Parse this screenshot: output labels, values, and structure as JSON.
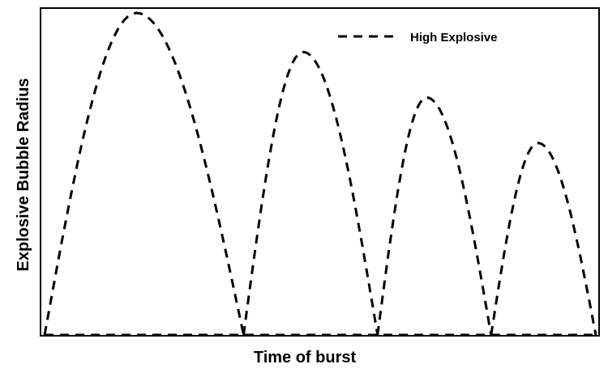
{
  "chart_data": {
    "type": "line",
    "title": "",
    "xlabel": "Time of burst",
    "ylabel": "Explosive Bubble Radius",
    "x_ticks_shown": false,
    "y_ticks_shown": false,
    "grid": false,
    "legend_position": "top-right",
    "xlim": [
      0,
      1
    ],
    "ylim": [
      0,
      1
    ],
    "series": [
      {
        "name": "High Explosive",
        "line_style": "dashed",
        "color": "#000000",
        "bubbles": [
          {
            "start": 0.0,
            "end": 0.361,
            "peak_x": 0.167,
            "peak_y": 0.99
          },
          {
            "start": 0.361,
            "end": 0.604,
            "peak_x": 0.469,
            "peak_y": 0.87
          },
          {
            "start": 0.604,
            "end": 0.81,
            "peak_x": 0.693,
            "peak_y": 0.73
          },
          {
            "start": 0.81,
            "end": 1.0,
            "peak_x": 0.895,
            "peak_y": 0.59
          }
        ]
      }
    ]
  }
}
